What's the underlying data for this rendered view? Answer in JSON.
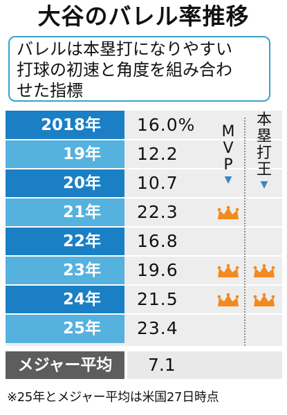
{
  "title": "大谷のバレル率推移",
  "description_lines": [
    "バレルは本塁打になりやすい",
    "打球の初速と角度を組み合わ",
    "せた指標"
  ],
  "column_heads": {
    "mvp": [
      "M",
      "V",
      "P"
    ],
    "hr_king": [
      "本",
      "塁",
      "打",
      "王"
    ]
  },
  "colors": {
    "year_dark": "#1a7fc4",
    "year_light": "#55b1de",
    "crown": "#f28a1e",
    "arrow": "#3a86c4",
    "border": "#3aa0c9",
    "average_bg": "#5d5d5d"
  },
  "icons": {
    "award": "crown-icon",
    "marker": "down-triangle-icon"
  },
  "chart_data": {
    "type": "table",
    "title": "大谷のバレル率推移",
    "columns": [
      "year",
      "barrel_rate",
      "MVP",
      "本塁打王"
    ],
    "rows": [
      {
        "year": "2018年",
        "value": "16.0%",
        "mvp": false,
        "hr_king": false
      },
      {
        "year": "19年",
        "value": "12.2",
        "mvp": false,
        "hr_king": false
      },
      {
        "year": "20年",
        "value": "10.7",
        "mvp": false,
        "hr_king": false
      },
      {
        "year": "21年",
        "value": "22.3",
        "mvp": true,
        "hr_king": false
      },
      {
        "year": "22年",
        "value": "16.8",
        "mvp": false,
        "hr_king": false
      },
      {
        "year": "23年",
        "value": "19.6",
        "mvp": true,
        "hr_king": true
      },
      {
        "year": "24年",
        "value": "21.5",
        "mvp": true,
        "hr_king": true
      },
      {
        "year": "25年",
        "value": "23.4",
        "mvp": false,
        "hr_king": false
      }
    ],
    "values": [
      16.0,
      12.2,
      10.7,
      22.3,
      16.8,
      19.6,
      21.5,
      23.4
    ],
    "unit": "%",
    "average": {
      "label": "メジャー平均",
      "value": "7.1"
    }
  },
  "footnote": "※25年とメジャー平均は米国27日時点"
}
